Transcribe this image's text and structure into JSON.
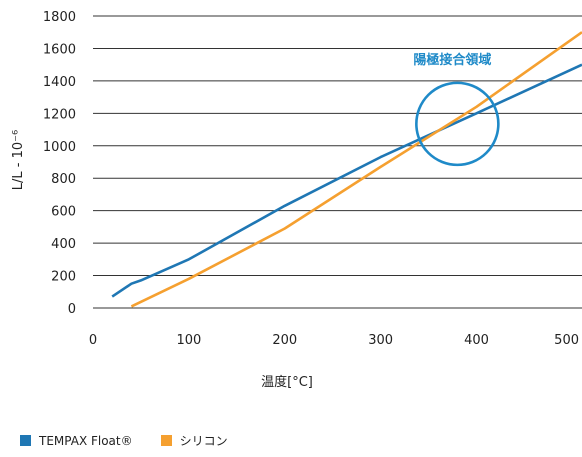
{
  "chart_data": {
    "type": "line",
    "xlabel": "温度[°C]",
    "ylabel": "L/L - 10⁻⁶",
    "xlim": [
      0,
      510
    ],
    "ylim": [
      0,
      1800
    ],
    "xticks": [
      0,
      100,
      200,
      300,
      400,
      500
    ],
    "yticks": [
      0,
      200,
      400,
      600,
      800,
      1000,
      1200,
      1400,
      1600,
      1800
    ],
    "grid": "horizontal",
    "legend_position": "bottom-left",
    "annotations": [
      {
        "text": "陽極接合領域",
        "x": 380,
        "y": 1135,
        "circle": true
      }
    ],
    "series": [
      {
        "name": "TEMPAX Float®",
        "color": "#1f77b4",
        "x": [
          20,
          40,
          50,
          100,
          200,
          300,
          400,
          510
        ],
        "y": [
          70,
          150,
          170,
          300,
          630,
          930,
          1200,
          1500
        ]
      },
      {
        "name": "シリコン",
        "color": "#f5a030",
        "x": [
          40,
          100,
          200,
          300,
          400,
          510
        ],
        "y": [
          10,
          180,
          490,
          870,
          1240,
          1700
        ]
      }
    ]
  },
  "colors": {
    "annotation": "#1f8ac8",
    "axis_text": "#222222",
    "grid": "#333333"
  }
}
